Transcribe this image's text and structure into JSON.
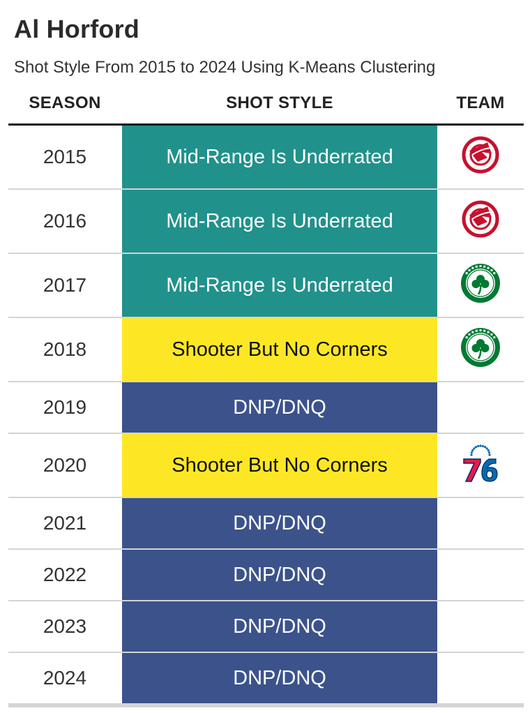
{
  "chart_data": {
    "type": "table",
    "title": "Al Horford",
    "subtitle": "Shot Style From 2015 to 2024 Using K-Means Clustering",
    "columns": [
      "SEASON",
      "SHOT STYLE",
      "TEAM"
    ],
    "styles": {
      "Mid-Range Is Underrated": {
        "bg": "#21918c",
        "fg": "#ffffff"
      },
      "Shooter But No Corners": {
        "bg": "#fde725",
        "fg": "#111111"
      },
      "DNP/DNQ": {
        "bg": "#3b528b",
        "fg": "#ffffff"
      }
    },
    "rows": [
      {
        "season": "2015",
        "style": "Mid-Range Is Underrated",
        "team": "hawks-logo"
      },
      {
        "season": "2016",
        "style": "Mid-Range Is Underrated",
        "team": "hawks-logo"
      },
      {
        "season": "2017",
        "style": "Mid-Range Is Underrated",
        "team": "celtics-logo"
      },
      {
        "season": "2018",
        "style": "Shooter But No Corners",
        "team": "celtics-logo"
      },
      {
        "season": "2019",
        "style": "DNP/DNQ",
        "team": ""
      },
      {
        "season": "2020",
        "style": "Shooter But No Corners",
        "team": "sixers-logo"
      },
      {
        "season": "2021",
        "style": "DNP/DNQ",
        "team": ""
      },
      {
        "season": "2022",
        "style": "DNP/DNQ",
        "team": ""
      },
      {
        "season": "2023",
        "style": "DNP/DNQ",
        "team": ""
      },
      {
        "season": "2024",
        "style": "DNP/DNQ",
        "team": ""
      }
    ]
  }
}
